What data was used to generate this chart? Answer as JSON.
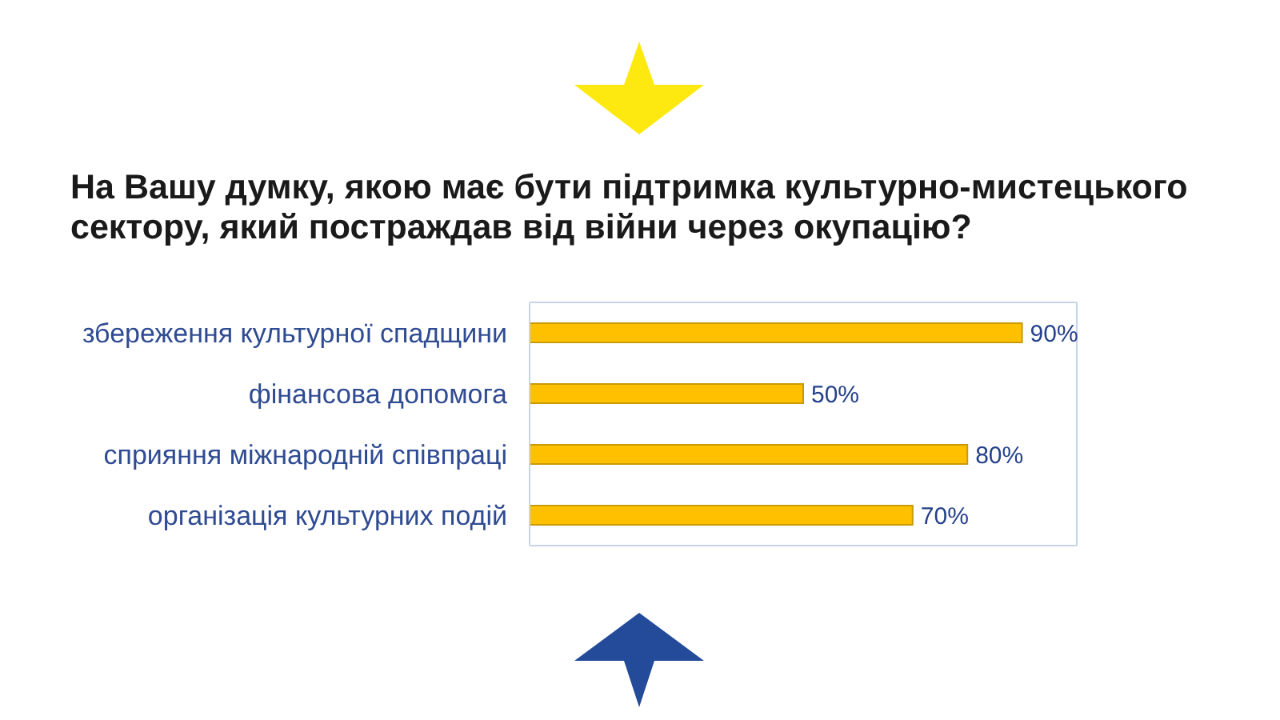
{
  "chart_data": {
    "type": "bar",
    "orientation": "horizontal",
    "title": "На Вашу думку, якою має бути підтримка культурно-мистецького сектору, який постраждав від війни через окупацію?",
    "categories": [
      "збереження культурної спадщини",
      "фінансова допомога",
      "сприяння міжнародній співпраці",
      "організація культурних подій"
    ],
    "values": [
      90,
      50,
      80,
      70
    ],
    "value_labels": [
      "90%",
      "50%",
      "80%",
      "70%"
    ],
    "color": "#ffc000",
    "xlim": [
      0,
      100
    ],
    "tick_labels": "y"
  }
}
